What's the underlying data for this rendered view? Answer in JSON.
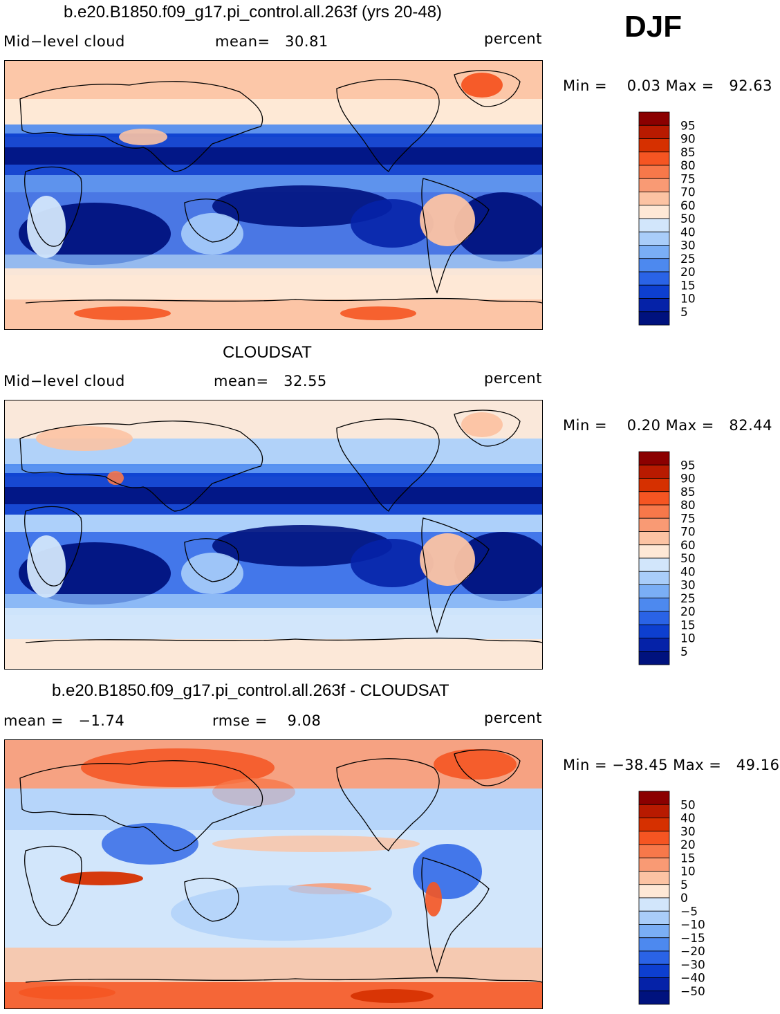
{
  "season": "DJF",
  "panels": [
    {
      "title": "b.e20.B1850.f09_g17.pi_control.all.263f (yrs 20-48)",
      "left_label": "Mid−level cloud",
      "center_label": "mean=   30.81",
      "right_label": "percent",
      "minmax": "Min =    0.03 Max =   92.63",
      "colorbar": {
        "labels": [
          "95",
          "90",
          "85",
          "80",
          "75",
          "70",
          "60",
          "50",
          "40",
          "30",
          "25",
          "20",
          "15",
          "10",
          "5"
        ],
        "colors": [
          "#8b0000",
          "#b81a00",
          "#d63000",
          "#f55522",
          "#f7784a",
          "#f99a74",
          "#fcc3a3",
          "#fee8d6",
          "#d2e6fb",
          "#a9cdf9",
          "#7aaef5",
          "#4d89ef",
          "#2a63e6",
          "#0d3fd0",
          "#0522a8",
          "#00127e"
        ]
      },
      "map_style": "model"
    },
    {
      "title": "CLOUDSAT",
      "left_label": "Mid−level cloud",
      "center_label": "mean=   32.55",
      "right_label": "percent",
      "minmax": "Min =    0.20 Max =   82.44",
      "colorbar": {
        "labels": [
          "95",
          "90",
          "85",
          "80",
          "75",
          "70",
          "60",
          "50",
          "40",
          "30",
          "25",
          "20",
          "15",
          "10",
          "5"
        ],
        "colors": [
          "#8b0000",
          "#b81a00",
          "#d63000",
          "#f55522",
          "#f7784a",
          "#f99a74",
          "#fcc3a3",
          "#fee8d6",
          "#d2e6fb",
          "#a9cdf9",
          "#7aaef5",
          "#4d89ef",
          "#2a63e6",
          "#0d3fd0",
          "#0522a8",
          "#00127e"
        ]
      },
      "map_style": "obs"
    },
    {
      "title": "b.e20.B1850.f09_g17.pi_control.all.263f - CLOUDSAT",
      "left_label": "mean =   −1.74",
      "center_label": "rmse =    9.08",
      "right_label": "percent",
      "minmax": "Min = −38.45 Max =   49.16",
      "colorbar": {
        "labels": [
          "50",
          "40",
          "30",
          "20",
          "15",
          "10",
          "5",
          "0",
          "−5",
          "−10",
          "−15",
          "−20",
          "−30",
          "−40",
          "−50"
        ],
        "colors": [
          "#8b0000",
          "#b81a00",
          "#d63000",
          "#f55522",
          "#f7784a",
          "#f99a74",
          "#fcc3a3",
          "#fee8d6",
          "#d2e6fb",
          "#a9cdf9",
          "#7aaef5",
          "#4d89ef",
          "#2a63e6",
          "#0d3fd0",
          "#0522a8",
          "#00127e"
        ]
      },
      "map_style": "diff"
    }
  ]
}
